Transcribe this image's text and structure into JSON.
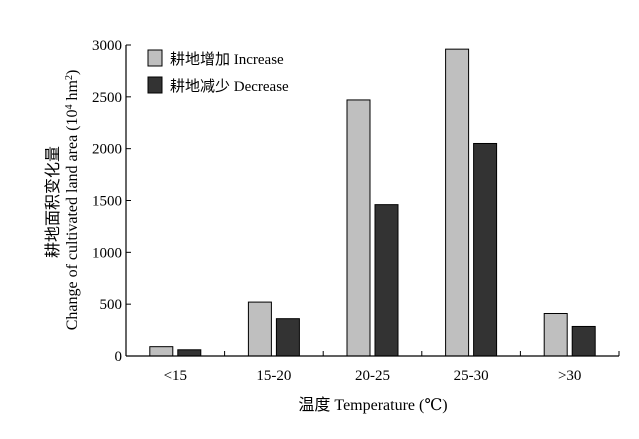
{
  "chart_data": {
    "type": "bar",
    "categories": [
      "<15",
      "15-20",
      "20-25",
      "25-30",
      ">30"
    ],
    "series": [
      {
        "name": "耕地增加 Increase",
        "values": [
          90,
          520,
          2470,
          2960,
          410
        ],
        "color": "#bfbfbf"
      },
      {
        "name": "耕地减少 Decrease",
        "values": [
          60,
          360,
          1460,
          2050,
          285
        ],
        "color": "#333333"
      }
    ],
    "xlabel": "温度 Temperature (℃)",
    "ylabel_cn": "耕地面积变化量",
    "ylabel_en": "Change of cultivated land area (10",
    "ylabel_exp": "4",
    "ylabel_unit": " hm",
    "ylabel_unit_exp": "2",
    "ylabel_close": ")",
    "ylim": [
      0,
      3000
    ],
    "yticks": [
      0,
      500,
      1000,
      1500,
      2000,
      2500,
      3000
    ],
    "grid": false,
    "legend_position": "top-left"
  }
}
